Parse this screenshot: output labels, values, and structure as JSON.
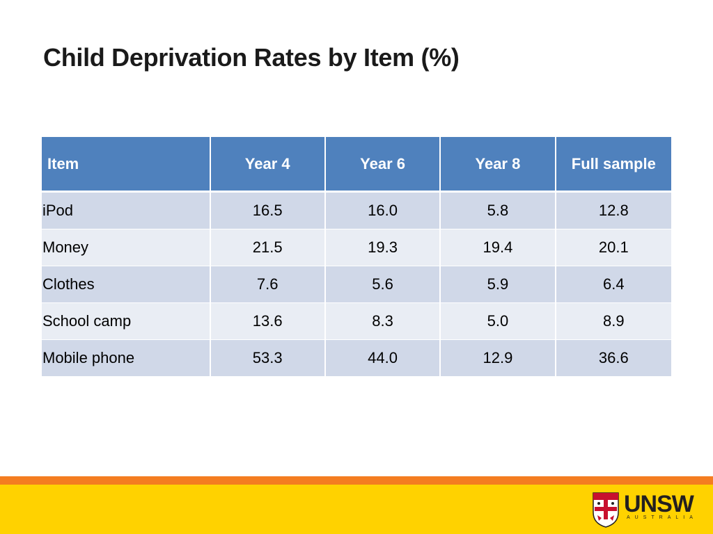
{
  "title": "Child Deprivation Rates by Item (%)",
  "table": {
    "headers": [
      "Item",
      "Year 4",
      "Year 6",
      "Year 8",
      "Full sample"
    ],
    "rows": [
      [
        "iPod",
        "16.5",
        "16.0",
        "5.8",
        "12.8"
      ],
      [
        "Money",
        "21.5",
        "19.3",
        "19.4",
        "20.1"
      ],
      [
        "Clothes",
        "7.6",
        "5.6",
        "5.9",
        "6.4"
      ],
      [
        "School camp",
        "13.6",
        "8.3",
        "5.0",
        "8.9"
      ],
      [
        "Mobile phone",
        "53.3",
        "44.0",
        "12.9",
        "36.6"
      ]
    ]
  },
  "logo": {
    "wordmark": "UNSW",
    "subtitle": "AUSTRALIA"
  },
  "colors": {
    "header_bg": "#4f81bd",
    "row_odd": "#d0d8e8",
    "row_even": "#e9edf4",
    "band_orange": "#f47d20",
    "band_yellow": "#ffd200"
  }
}
